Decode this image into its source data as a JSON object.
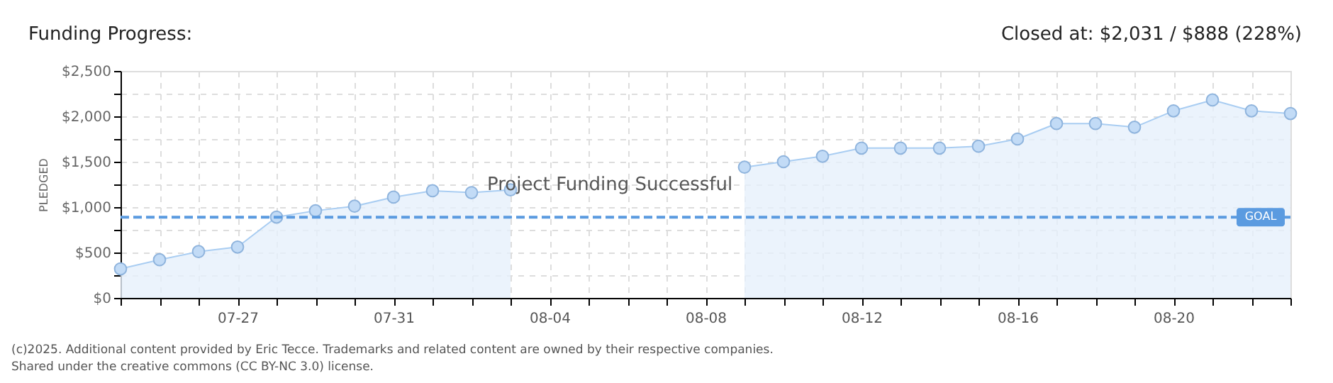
{
  "chart_data": {
    "type": "area",
    "title": "Funding Progress:",
    "subtitle": "Closed at: $2,031 / $888 (228%)",
    "ylabel": "PLEDGED",
    "x": [
      "2025-07-24",
      "2025-07-25",
      "2025-07-26",
      "2025-07-27",
      "2025-07-28",
      "2025-07-29",
      "2025-07-30",
      "2025-07-31",
      "2025-08-01",
      "2025-08-02",
      "2025-08-03",
      "2025-08-04",
      "2025-08-05",
      "2025-08-06",
      "2025-08-07",
      "2025-08-08",
      "2025-08-09",
      "2025-08-10",
      "2025-08-11",
      "2025-08-12",
      "2025-08-13",
      "2025-08-14",
      "2025-08-15",
      "2025-08-16",
      "2025-08-17",
      "2025-08-18",
      "2025-08-19",
      "2025-08-20",
      "2025-08-21",
      "2025-08-22",
      "2025-08-23"
    ],
    "series": [
      {
        "color": "#a9cdf2",
        "values": [
          320,
          420,
          510,
          560,
          890,
          960,
          1010,
          1110,
          1180,
          1160,
          1190,
          null,
          null,
          null,
          null,
          null,
          1440,
          1500,
          1560,
          1650,
          1650,
          1650,
          1670,
          1750,
          1920,
          1920,
          1880,
          2060,
          2180,
          2060,
          2031
        ]
      }
    ],
    "xlim": [
      "2025-07-24",
      "2025-08-23"
    ],
    "xticks": [
      {
        "value": "2025-07-24",
        "label": null
      },
      {
        "value": "2025-07-25",
        "label": null
      },
      {
        "value": "2025-07-26",
        "label": null
      },
      {
        "value": "2025-07-27",
        "label": "07-27"
      },
      {
        "value": "2025-07-28",
        "label": null
      },
      {
        "value": "2025-07-29",
        "label": null
      },
      {
        "value": "2025-07-30",
        "label": null
      },
      {
        "value": "2025-07-31",
        "label": "07-31"
      },
      {
        "value": "2025-08-01",
        "label": null
      },
      {
        "value": "2025-08-02",
        "label": null
      },
      {
        "value": "2025-08-03",
        "label": null
      },
      {
        "value": "2025-08-04",
        "label": "08-04"
      },
      {
        "value": "2025-08-05",
        "label": null
      },
      {
        "value": "2025-08-06",
        "label": null
      },
      {
        "value": "2025-08-07",
        "label": null
      },
      {
        "value": "2025-08-08",
        "label": "08-08"
      },
      {
        "value": "2025-08-09",
        "label": null
      },
      {
        "value": "2025-08-10",
        "label": null
      },
      {
        "value": "2025-08-11",
        "label": null
      },
      {
        "value": "2025-08-12",
        "label": "08-12"
      },
      {
        "value": "2025-08-13",
        "label": null
      },
      {
        "value": "2025-08-14",
        "label": null
      },
      {
        "value": "2025-08-15",
        "label": null
      },
      {
        "value": "2025-08-16",
        "label": "08-16"
      },
      {
        "value": "2025-08-17",
        "label": null
      },
      {
        "value": "2025-08-18",
        "label": null
      },
      {
        "value": "2025-08-19",
        "label": null
      },
      {
        "value": "2025-08-20",
        "label": "08-20"
      },
      {
        "value": "2025-08-21",
        "label": null
      },
      {
        "value": "2025-08-22",
        "label": null
      },
      {
        "value": "2025-08-23",
        "label": null
      }
    ],
    "ylim": [
      0,
      2500
    ],
    "yticks": [
      {
        "value": 0,
        "label": "$0"
      },
      {
        "value": 250,
        "label": null
      },
      {
        "value": 500,
        "label": "$500"
      },
      {
        "value": 750,
        "label": null
      },
      {
        "value": 1000,
        "label": "$1,000"
      },
      {
        "value": 1250,
        "label": null
      },
      {
        "value": 1500,
        "label": "$1,500"
      },
      {
        "value": 1750,
        "label": null
      },
      {
        "value": 2000,
        "label": "$2,000"
      },
      {
        "value": 2250,
        "label": null
      },
      {
        "value": 2500,
        "label": "$2,500"
      }
    ],
    "ref_lines": [
      {
        "axis": "y",
        "value": 888,
        "label": "GOAL",
        "color": "#5b9be0",
        "line_style": "dashed"
      }
    ],
    "grid": true,
    "marker": "circle",
    "line_style": "solid",
    "annotations": [
      "Project Funding Successful",
      "(c)2025. Additional content provided by Eric Tecce. Trademarks and related content are owned by their respective companies.",
      "Shared under the creative commons (CC BY-NC 3.0) license."
    ]
  }
}
